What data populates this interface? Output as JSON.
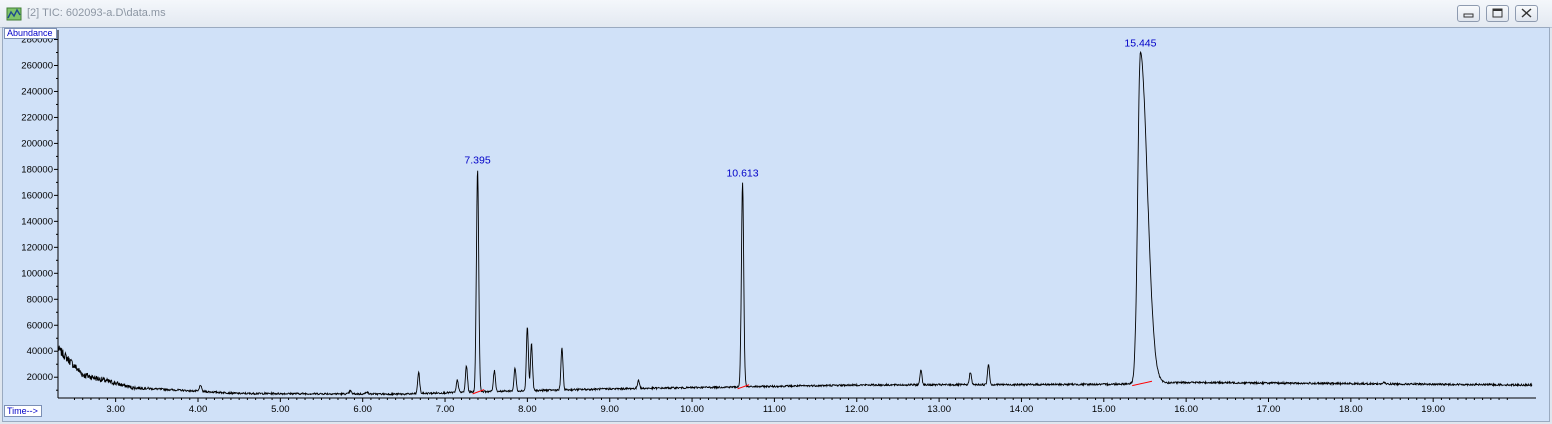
{
  "window": {
    "title": "[2] TIC: 602093-a.D\\data.ms",
    "icon": "chromatogram-app-icon",
    "controls": [
      "minimize-icon",
      "restore-icon",
      "close-icon"
    ]
  },
  "chart_data": {
    "type": "line",
    "title": "",
    "xlabel": "Time-->",
    "ylabel": "Abundance",
    "xlim": [
      2.3,
      20.2
    ],
    "ylim": [
      4000,
      285000
    ],
    "x_ticks": [
      "3.00",
      "4.00",
      "5.00",
      "6.00",
      "7.00",
      "8.00",
      "9.00",
      "10.00",
      "11.00",
      "12.00",
      "13.00",
      "14.00",
      "15.00",
      "16.00",
      "17.00",
      "18.00",
      "19.00"
    ],
    "y_ticks": [
      "20000",
      "40000",
      "60000",
      "80000",
      "100000",
      "120000",
      "140000",
      "160000",
      "180000",
      "200000",
      "220000",
      "240000",
      "260000",
      "280000"
    ],
    "grid": false,
    "line_color": "#000000",
    "label_color": "#0000c8",
    "baseline_color": "#ff0000",
    "labeled_peaks": [
      {
        "rt": 7.395,
        "label": "7.395",
        "height": 180000
      },
      {
        "rt": 10.613,
        "label": "10.613",
        "height": 170000
      },
      {
        "rt": 15.445,
        "label": "15.445",
        "height": 270000
      }
    ],
    "minor_peaks": [
      {
        "rt": 4.03,
        "height": 14000
      },
      {
        "rt": 5.85,
        "height": 9500
      },
      {
        "rt": 6.05,
        "height": 9000
      },
      {
        "rt": 6.68,
        "height": 24000
      },
      {
        "rt": 7.15,
        "height": 18000
      },
      {
        "rt": 7.26,
        "height": 29000
      },
      {
        "rt": 7.6,
        "height": 25000
      },
      {
        "rt": 7.85,
        "height": 27000
      },
      {
        "rt": 8.0,
        "height": 59000
      },
      {
        "rt": 8.05,
        "height": 46000
      },
      {
        "rt": 8.42,
        "height": 43000
      },
      {
        "rt": 9.35,
        "height": 18000
      },
      {
        "rt": 12.78,
        "height": 26000
      },
      {
        "rt": 13.38,
        "height": 24000
      },
      {
        "rt": 13.6,
        "height": 30000
      },
      {
        "rt": 18.4,
        "height": 16000
      }
    ],
    "baseline": [
      {
        "x": 2.3,
        "y": 42000
      },
      {
        "x": 2.6,
        "y": 22000
      },
      {
        "x": 3.2,
        "y": 12000
      },
      {
        "x": 4.5,
        "y": 7500
      },
      {
        "x": 6.5,
        "y": 7000
      },
      {
        "x": 7.5,
        "y": 9000
      },
      {
        "x": 9.0,
        "y": 11000
      },
      {
        "x": 10.5,
        "y": 12500
      },
      {
        "x": 12.0,
        "y": 14000
      },
      {
        "x": 15.0,
        "y": 14500
      },
      {
        "x": 16.0,
        "y": 16000
      },
      {
        "x": 20.2,
        "y": 14000
      }
    ]
  }
}
